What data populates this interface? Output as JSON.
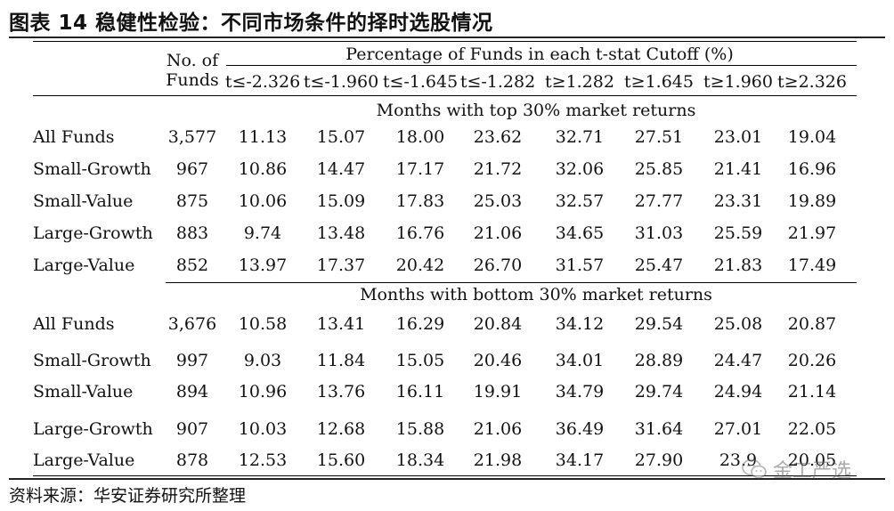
{
  "figure": {
    "title": "图表 14 稳健性检验：不同市场条件的择时选股情况",
    "source": "资料来源：华安证券研究所整理",
    "watermark": "金工严选"
  },
  "table": {
    "header": {
      "no_of_funds_line1": "No. of",
      "no_of_funds_line2": "Funds",
      "group_header": "Percentage of Funds in each t-stat Cutoff (%)",
      "cutoffs": [
        "t≤-2.326",
        "t≤-1.960",
        "t≤-1.645",
        "t≤-1.282",
        "t≥1.282",
        "t≥1.645",
        "t≥1.960",
        "t≥2.326"
      ]
    },
    "panels": [
      {
        "caption": "Months with top 30% market returns",
        "rows": [
          {
            "name": "All Funds",
            "funds": "3,577",
            "values": [
              "11.13",
              "15.07",
              "18.00",
              "23.62",
              "32.71",
              "27.51",
              "23.01",
              "19.04"
            ]
          },
          {
            "name": "Small-Growth",
            "funds": "967",
            "values": [
              "10.86",
              "14.47",
              "17.17",
              "21.72",
              "32.06",
              "25.85",
              "21.41",
              "16.96"
            ]
          },
          {
            "name": "Small-Value",
            "funds": "875",
            "values": [
              "10.06",
              "15.09",
              "17.83",
              "25.03",
              "32.57",
              "27.77",
              "23.31",
              "19.89"
            ]
          },
          {
            "name": "Large-Growth",
            "funds": "883",
            "values": [
              "9.74",
              "13.48",
              "16.76",
              "21.06",
              "34.65",
              "31.03",
              "25.59",
              "21.97"
            ]
          },
          {
            "name": "Large-Value",
            "funds": "852",
            "values": [
              "13.97",
              "17.37",
              "20.42",
              "26.70",
              "31.57",
              "25.47",
              "21.83",
              "17.49"
            ]
          }
        ]
      },
      {
        "caption": "Months with bottom 30% market returns",
        "rows": [
          {
            "name": "All Funds",
            "funds": "3,676",
            "values": [
              "10.58",
              "13.41",
              "16.29",
              "20.84",
              "34.12",
              "29.54",
              "25.08",
              "20.87"
            ]
          },
          {
            "name": "Small-Growth",
            "funds": "997",
            "values": [
              "9.03",
              "11.84",
              "15.05",
              "20.46",
              "34.01",
              "28.89",
              "24.47",
              "20.26"
            ]
          },
          {
            "name": "Small-Value",
            "funds": "894",
            "values": [
              "10.96",
              "13.76",
              "16.11",
              "19.91",
              "34.79",
              "29.74",
              "24.94",
              "21.14"
            ]
          },
          {
            "name": "Large-Growth",
            "funds": "907",
            "values": [
              "10.03",
              "12.68",
              "15.88",
              "21.06",
              "36.49",
              "31.64",
              "27.01",
              "22.05"
            ]
          },
          {
            "name": "Large-Value",
            "funds": "878",
            "values": [
              "12.53",
              "15.60",
              "18.34",
              "21.98",
              "34.17",
              "27.90",
              "23.9",
              "20.05"
            ]
          }
        ]
      }
    ]
  }
}
